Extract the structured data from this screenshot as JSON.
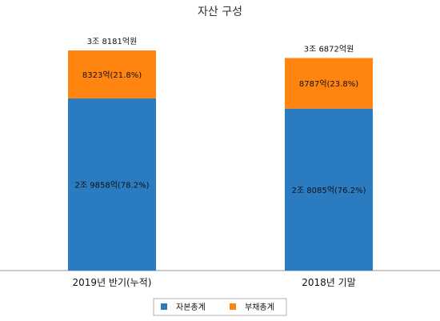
{
  "chart_data": {
    "type": "bar",
    "stacked": true,
    "title": "자산 구성",
    "categories": [
      "2019년 반기(누적)",
      "2018년 기말"
    ],
    "series": [
      {
        "name": "자본총계",
        "color": "#2a7bbf",
        "values": [
          29858,
          28085
        ],
        "labels": [
          "2조 9858억(78.2%)",
          "2조 8085억(76.2%)"
        ]
      },
      {
        "name": "부채총계",
        "color": "#ff8410",
        "values": [
          8323,
          8787
        ],
        "labels": [
          "8323억(21.8%)",
          "8787억(23.8%)"
        ]
      }
    ],
    "totals": [
      38181,
      36872
    ],
    "total_labels": [
      "3조 8181억원",
      "3조 6872억원"
    ],
    "ylim": [
      0,
      38181
    ],
    "unit": "억원",
    "grid": false,
    "legend_position": "bottom-center"
  }
}
